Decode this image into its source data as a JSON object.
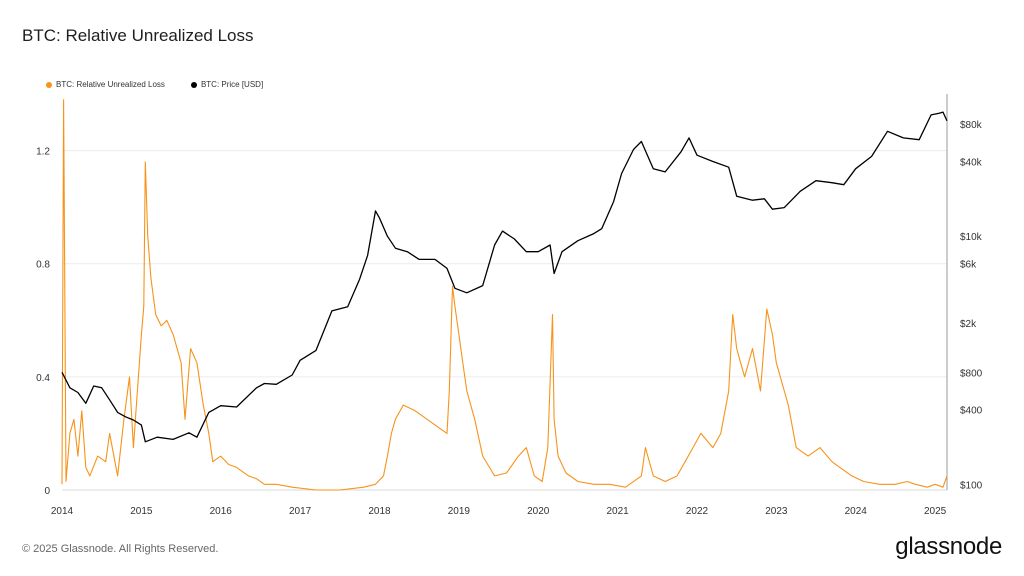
{
  "chart_data": {
    "type": "line",
    "title": "BTC: Relative Unrealized Loss",
    "legend_position": "top-left",
    "grid": true,
    "x_ticks": [
      "2014",
      "2015",
      "2016",
      "2017",
      "2018",
      "2019",
      "2020",
      "2021",
      "2022",
      "2023",
      "2024",
      "2025"
    ],
    "x_range": [
      2014.0,
      2025.15
    ],
    "y_left": {
      "range": [
        0,
        1.4
      ],
      "ticks": [
        {
          "value": 0,
          "label": "0"
        },
        {
          "value": 0.4,
          "label": "0.4"
        },
        {
          "value": 0.8,
          "label": "0.8"
        },
        {
          "value": 1.2,
          "label": "1.2"
        }
      ]
    },
    "y_right": {
      "scale": "log",
      "range": [
        90,
        140000
      ],
      "ticks": [
        {
          "value": 100,
          "label": "$100"
        },
        {
          "value": 400,
          "label": "$400"
        },
        {
          "value": 800,
          "label": "$800"
        },
        {
          "value": 2000,
          "label": "$2k"
        },
        {
          "value": 6000,
          "label": "$6k"
        },
        {
          "value": 10000,
          "label": "$10k"
        },
        {
          "value": 40000,
          "label": "$40k"
        },
        {
          "value": 80000,
          "label": "$80k"
        }
      ]
    },
    "series": [
      {
        "name": "BTC: Relative Unrealized Loss",
        "color": "#f7931a",
        "axis": "left",
        "x": [
          2014.0,
          2014.02,
          2014.05,
          2014.1,
          2014.15,
          2014.2,
          2014.25,
          2014.3,
          2014.35,
          2014.45,
          2014.55,
          2014.6,
          2014.7,
          2014.78,
          2014.85,
          2014.9,
          2014.95,
          2015.0,
          2015.03,
          2015.05,
          2015.08,
          2015.12,
          2015.18,
          2015.25,
          2015.32,
          2015.4,
          2015.5,
          2015.55,
          2015.62,
          2015.7,
          2015.78,
          2015.85,
          2015.9,
          2016.0,
          2016.1,
          2016.2,
          2016.35,
          2016.45,
          2016.55,
          2016.7,
          2016.9,
          2017.2,
          2017.5,
          2017.8,
          2017.95,
          2018.05,
          2018.1,
          2018.15,
          2018.2,
          2018.3,
          2018.45,
          2018.6,
          2018.75,
          2018.85,
          2018.88,
          2018.92,
          2018.95,
          2019.0,
          2019.05,
          2019.1,
          2019.2,
          2019.3,
          2019.45,
          2019.6,
          2019.75,
          2019.85,
          2019.95,
          2020.05,
          2020.12,
          2020.18,
          2020.2,
          2020.25,
          2020.35,
          2020.5,
          2020.7,
          2020.9,
          2021.1,
          2021.3,
          2021.35,
          2021.45,
          2021.6,
          2021.75,
          2021.85,
          2021.95,
          2022.05,
          2022.2,
          2022.3,
          2022.4,
          2022.45,
          2022.5,
          2022.55,
          2022.6,
          2022.7,
          2022.8,
          2022.88,
          2022.95,
          2023.0,
          2023.1,
          2023.15,
          2023.25,
          2023.4,
          2023.55,
          2023.7,
          2023.8,
          2023.95,
          2024.1,
          2024.3,
          2024.5,
          2024.65,
          2024.75,
          2024.9,
          2025.0,
          2025.1,
          2025.15
        ],
        "values": [
          0.02,
          1.38,
          0.03,
          0.2,
          0.25,
          0.12,
          0.28,
          0.08,
          0.05,
          0.12,
          0.1,
          0.2,
          0.05,
          0.25,
          0.4,
          0.15,
          0.35,
          0.55,
          0.65,
          1.16,
          0.9,
          0.75,
          0.62,
          0.58,
          0.6,
          0.55,
          0.45,
          0.25,
          0.5,
          0.45,
          0.3,
          0.2,
          0.1,
          0.12,
          0.09,
          0.08,
          0.05,
          0.04,
          0.02,
          0.02,
          0.01,
          0.0,
          0.0,
          0.01,
          0.02,
          0.05,
          0.12,
          0.2,
          0.25,
          0.3,
          0.28,
          0.25,
          0.22,
          0.2,
          0.35,
          0.72,
          0.65,
          0.55,
          0.45,
          0.35,
          0.25,
          0.12,
          0.05,
          0.06,
          0.12,
          0.15,
          0.05,
          0.03,
          0.15,
          0.62,
          0.25,
          0.12,
          0.06,
          0.03,
          0.02,
          0.02,
          0.01,
          0.05,
          0.15,
          0.05,
          0.03,
          0.05,
          0.1,
          0.15,
          0.2,
          0.15,
          0.2,
          0.35,
          0.62,
          0.5,
          0.45,
          0.4,
          0.5,
          0.35,
          0.64,
          0.55,
          0.45,
          0.35,
          0.3,
          0.15,
          0.12,
          0.15,
          0.1,
          0.08,
          0.05,
          0.03,
          0.02,
          0.02,
          0.03,
          0.02,
          0.01,
          0.02,
          0.01,
          0.05
        ]
      },
      {
        "name": "BTC: Price [USD]",
        "color": "#000000",
        "axis": "right",
        "x": [
          2014.0,
          2014.1,
          2014.2,
          2014.3,
          2014.4,
          2014.5,
          2014.6,
          2014.7,
          2014.8,
          2014.9,
          2015.0,
          2015.05,
          2015.2,
          2015.4,
          2015.6,
          2015.7,
          2015.85,
          2016.0,
          2016.2,
          2016.45,
          2016.55,
          2016.7,
          2016.9,
          2017.0,
          2017.2,
          2017.4,
          2017.6,
          2017.75,
          2017.85,
          2017.95,
          2018.0,
          2018.1,
          2018.2,
          2018.35,
          2018.5,
          2018.7,
          2018.85,
          2018.95,
          2019.1,
          2019.3,
          2019.45,
          2019.55,
          2019.7,
          2019.85,
          2020.0,
          2020.15,
          2020.2,
          2020.3,
          2020.5,
          2020.7,
          2020.8,
          2020.95,
          2021.05,
          2021.2,
          2021.3,
          2021.45,
          2021.6,
          2021.8,
          2021.9,
          2022.0,
          2022.2,
          2022.4,
          2022.5,
          2022.7,
          2022.85,
          2022.95,
          2023.1,
          2023.3,
          2023.5,
          2023.7,
          2023.85,
          2024.0,
          2024.2,
          2024.4,
          2024.6,
          2024.8,
          2024.95,
          2025.05,
          2025.1,
          2025.15
        ],
        "values": [
          800,
          600,
          550,
          450,
          620,
          600,
          480,
          380,
          350,
          330,
          300,
          220,
          240,
          230,
          260,
          240,
          380,
          430,
          420,
          600,
          650,
          640,
          760,
          1000,
          1200,
          2500,
          2700,
          4500,
          7000,
          16000,
          14000,
          10000,
          8000,
          7500,
          6500,
          6500,
          5500,
          3800,
          3500,
          4000,
          8500,
          11000,
          9500,
          7500,
          7500,
          8500,
          5000,
          7500,
          9200,
          10500,
          11500,
          19000,
          32000,
          50000,
          58000,
          35000,
          33000,
          48000,
          62000,
          45000,
          40000,
          36000,
          21000,
          19500,
          20000,
          16500,
          17000,
          23000,
          28000,
          27000,
          26000,
          35000,
          44000,
          70000,
          62000,
          60000,
          95000,
          98000,
          100000,
          85000
        ]
      }
    ]
  },
  "legend": [
    {
      "label": "BTC: Relative Unrealized Loss",
      "color": "#f7931a"
    },
    {
      "label": "BTC: Price [USD]",
      "color": "#000000"
    }
  ],
  "footer": {
    "copyright": "© 2025 Glassnode. All Rights Reserved.",
    "logo": "glassnode"
  }
}
